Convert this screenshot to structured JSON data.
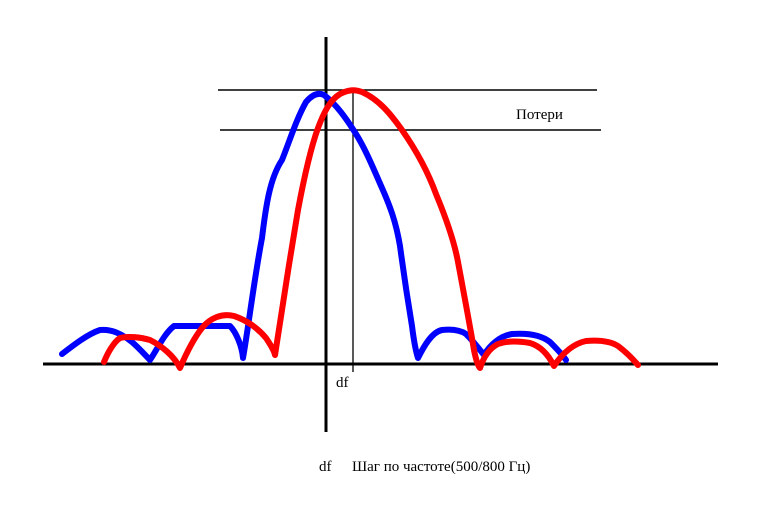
{
  "labels": {
    "losses": "Потери",
    "df_axis": "df",
    "caption_symbol": "df",
    "caption_text": "Шаг по частоте(500/800 Гц)"
  },
  "colors": {
    "blue_curve": "#0000ff",
    "red_curve": "#ff0000",
    "lines": "#000000",
    "background": "#ffffff"
  }
}
